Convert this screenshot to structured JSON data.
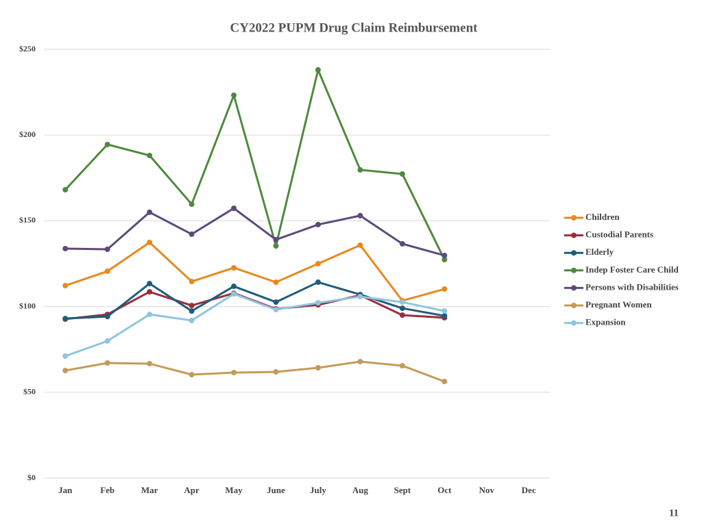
{
  "chart_data": {
    "type": "line",
    "title": "CY2022 PUPM Drug Claim Reimbursement",
    "categories": [
      "Jan",
      "Feb",
      "Mar",
      "Apr",
      "May",
      "June",
      "July",
      "Aug",
      "Sept",
      "Oct",
      "Nov",
      "Dec"
    ],
    "series": [
      {
        "name": "Children",
        "color": "#e8891d",
        "values": [
          112.2,
          120.6,
          137.4,
          114.6,
          122.6,
          114.2,
          125,
          135.8,
          103.4,
          110.2,
          null,
          null
        ]
      },
      {
        "name": "Custodial Parents",
        "color": "#9b2d3e",
        "values": [
          92.7,
          95.4,
          108.6,
          100.6,
          107.8,
          98.6,
          101,
          106.6,
          95,
          93.5,
          null,
          null
        ]
      },
      {
        "name": "Elderly",
        "color": "#1f5c7a",
        "values": [
          93,
          94.2,
          113.4,
          97.4,
          111.8,
          102.6,
          114.2,
          107,
          99,
          94.6,
          null,
          null
        ]
      },
      {
        "name": "Indep Foster Care Child",
        "color": "#4e8a3e",
        "values": [
          168.1,
          194.5,
          188.1,
          159.7,
          223.2,
          135.4,
          238,
          179.7,
          177.3,
          127.4,
          null,
          null
        ]
      },
      {
        "name": "Persons with Disabilities",
        "color": "#5c4a7c",
        "values": [
          133.8,
          133.4,
          155,
          142.2,
          157.3,
          139,
          147.8,
          153,
          136.6,
          129.8,
          null,
          null
        ]
      },
      {
        "name": "Pregnant Women",
        "color": "#c49a5a",
        "values": [
          62.7,
          67.1,
          66.7,
          60.3,
          61.5,
          61.9,
          64.3,
          67.9,
          65.5,
          56.3,
          null,
          null
        ]
      },
      {
        "name": "Expansion",
        "color": "#8ec5e0",
        "values": [
          71.1,
          79.9,
          95.4,
          91.9,
          107.4,
          98.2,
          102.2,
          105.8,
          102.6,
          97.4,
          null,
          null
        ]
      }
    ],
    "ylim": [
      0,
      250
    ],
    "yticks": [
      {
        "value": 0,
        "label": "$0"
      },
      {
        "value": 50,
        "label": "$50"
      },
      {
        "value": 100,
        "label": "$100"
      },
      {
        "value": 150,
        "label": "$150"
      },
      {
        "value": 200,
        "label": "$200"
      },
      {
        "value": 250,
        "label": "$250"
      }
    ],
    "grid": true,
    "legend": "right"
  },
  "page_number": "11"
}
